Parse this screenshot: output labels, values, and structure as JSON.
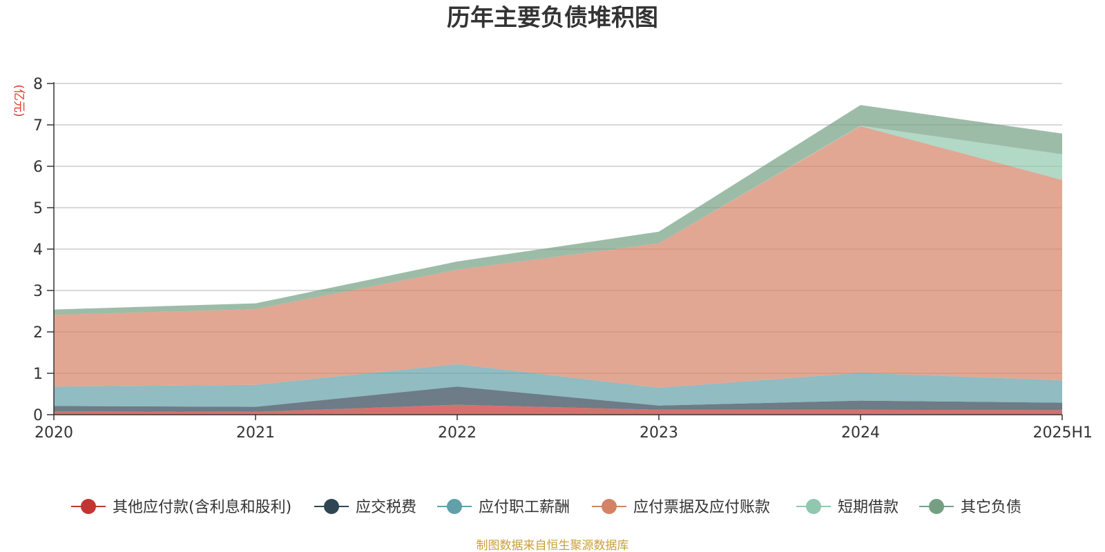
{
  "colors": {
    "other_payables": "#c23531",
    "taxes_payable": "#2f4554",
    "employee_pay": "#61a0a8",
    "notes_accounts_payable": "#d48265",
    "short_term_loans": "#91c7ae",
    "other_liabilities": "#749f83"
  },
  "chart_data": {
    "type": "area",
    "stacked": true,
    "title": "历年主要负债堆积图",
    "unit": "(亿元)",
    "categories": [
      "2020",
      "2021",
      "2022",
      "2023",
      "2024",
      "2025H1"
    ],
    "y_ticks": [
      "0",
      "1",
      "2",
      "3",
      "4",
      "5",
      "6",
      "7",
      "8"
    ],
    "ylim": [
      0,
      8
    ],
    "grid": true,
    "legend_position": "bottom",
    "series": [
      {
        "name": "其他应付款(含利息和股利)",
        "color_key": "other_payables",
        "values": [
          0.08,
          0.07,
          0.24,
          0.12,
          0.12,
          0.11
        ]
      },
      {
        "name": "应交税费",
        "color_key": "taxes_payable",
        "values": [
          0.13,
          0.12,
          0.44,
          0.1,
          0.22,
          0.18
        ]
      },
      {
        "name": "应付职工薪酬",
        "color_key": "employee_pay",
        "values": [
          0.47,
          0.53,
          0.54,
          0.43,
          0.67,
          0.54
        ]
      },
      {
        "name": "应付票据及应付账款",
        "color_key": "notes_accounts_payable",
        "values": [
          1.73,
          1.83,
          2.28,
          3.49,
          5.96,
          4.84
        ]
      },
      {
        "name": "短期借款",
        "color_key": "short_term_loans",
        "values": [
          0,
          0,
          0,
          0,
          0.01,
          0.62
        ]
      },
      {
        "name": "其它负债",
        "color_key": "other_liabilities",
        "values": [
          0.13,
          0.14,
          0.2,
          0.28,
          0.5,
          0.5
        ]
      }
    ]
  },
  "footer": {
    "source": "制图数据来自恒生聚源数据库"
  }
}
